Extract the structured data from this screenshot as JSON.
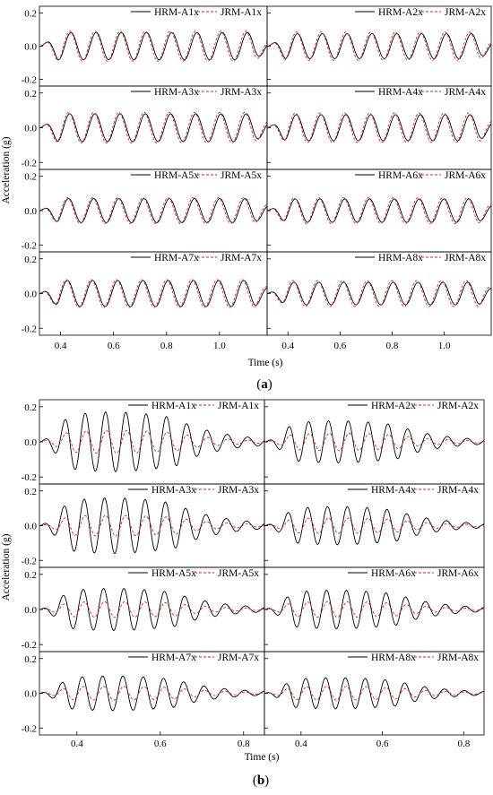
{
  "chart_data": [
    {
      "type": "line",
      "panel_label": "(a)",
      "panel_letter": "a",
      "xlabel": "Time (s)",
      "ylabel": "Acceleration (g)",
      "xlim": [
        0.32,
        1.18
      ],
      "ylim": [
        -0.24,
        0.24
      ],
      "xticks": [
        0.4,
        0.6,
        0.8,
        1.0
      ],
      "xtick_labels": [
        "0.4",
        "0.6",
        "0.8",
        "1.0"
      ],
      "yticks": [
        -0.2,
        0.0,
        0.2
      ],
      "ytick_labels": [
        "-0.2",
        "0.0",
        "0.2"
      ],
      "grid": false,
      "legend_position": "top-right",
      "line_colors": {
        "HRM": "#000000",
        "JRM": "#d62728"
      },
      "frequency_hz": 10.5,
      "subplots": [
        {
          "series": [
            {
              "name": "HRM-A1x",
              "style": "solid"
            },
            {
              "name": "JRM-A1x",
              "style": "dashed"
            }
          ],
          "hrm_peak": 0.082,
          "jrm_peak": 0.09
        },
        {
          "series": [
            {
              "name": "HRM-A2x",
              "style": "solid"
            },
            {
              "name": "JRM-A2x",
              "style": "dashed"
            }
          ],
          "hrm_peak": 0.075,
          "jrm_peak": 0.085
        },
        {
          "series": [
            {
              "name": "HRM-A3x",
              "style": "solid"
            },
            {
              "name": "JRM-A3x",
              "style": "dashed"
            }
          ],
          "hrm_peak": 0.08,
          "jrm_peak": 0.088
        },
        {
          "series": [
            {
              "name": "HRM-A4x",
              "style": "solid"
            },
            {
              "name": "JRM-A4x",
              "style": "dashed"
            }
          ],
          "hrm_peak": 0.075,
          "jrm_peak": 0.085
        },
        {
          "series": [
            {
              "name": "HRM-A5x",
              "style": "solid"
            },
            {
              "name": "JRM-A5x",
              "style": "dashed"
            }
          ],
          "hrm_peak": 0.07,
          "jrm_peak": 0.075
        },
        {
          "series": [
            {
              "name": "HRM-A6x",
              "style": "solid"
            },
            {
              "name": "JRM-A6x",
              "style": "dashed"
            }
          ],
          "hrm_peak": 0.068,
          "jrm_peak": 0.075
        },
        {
          "series": [
            {
              "name": "HRM-A7x",
              "style": "solid"
            },
            {
              "name": "JRM-A7x",
              "style": "dashed"
            }
          ],
          "hrm_peak": 0.075,
          "jrm_peak": 0.08
        },
        {
          "series": [
            {
              "name": "HRM-A8x",
              "style": "solid"
            },
            {
              "name": "JRM-A8x",
              "style": "dashed"
            }
          ],
          "hrm_peak": 0.065,
          "jrm_peak": 0.075
        }
      ]
    },
    {
      "type": "line",
      "panel_label": "(b)",
      "panel_letter": "b",
      "xlabel": "Time (s)",
      "ylabel": "Acceleration (g)",
      "xlim": [
        0.31,
        0.85
      ],
      "ylim": [
        -0.24,
        0.24
      ],
      "xticks": [
        0.4,
        0.6,
        0.8
      ],
      "xtick_labels": [
        "0.4",
        "0.6",
        "0.8"
      ],
      "yticks": [
        -0.2,
        0.0,
        0.2
      ],
      "ytick_labels": [
        "-0.2",
        "0.0",
        "0.2"
      ],
      "grid": false,
      "legend_position": "top-right",
      "line_colors": {
        "HRM": "#000000",
        "JRM": "#d62728"
      },
      "frequency_hz": 20.5,
      "subplots": [
        {
          "series": [
            {
              "name": "HRM-A1x",
              "style": "solid"
            },
            {
              "name": "JRM-A1x",
              "style": "dashed"
            }
          ],
          "hrm_peak": 0.17,
          "jrm_peak": 0.065
        },
        {
          "series": [
            {
              "name": "HRM-A2x",
              "style": "solid"
            },
            {
              "name": "JRM-A2x",
              "style": "dashed"
            }
          ],
          "hrm_peak": 0.12,
          "jrm_peak": 0.05
        },
        {
          "series": [
            {
              "name": "HRM-A3x",
              "style": "solid"
            },
            {
              "name": "JRM-A3x",
              "style": "dashed"
            }
          ],
          "hrm_peak": 0.16,
          "jrm_peak": 0.06
        },
        {
          "series": [
            {
              "name": "HRM-A4x",
              "style": "solid"
            },
            {
              "name": "JRM-A4x",
              "style": "dashed"
            }
          ],
          "hrm_peak": 0.11,
          "jrm_peak": 0.045
        },
        {
          "series": [
            {
              "name": "HRM-A5x",
              "style": "solid"
            },
            {
              "name": "JRM-A5x",
              "style": "dashed"
            }
          ],
          "hrm_peak": 0.12,
          "jrm_peak": 0.045
        },
        {
          "series": [
            {
              "name": "HRM-A6x",
              "style": "solid"
            },
            {
              "name": "JRM-A6x",
              "style": "dashed"
            }
          ],
          "hrm_peak": 0.11,
          "jrm_peak": 0.045
        },
        {
          "series": [
            {
              "name": "HRM-A7x",
              "style": "solid"
            },
            {
              "name": "JRM-A7x",
              "style": "dashed"
            }
          ],
          "hrm_peak": 0.1,
          "jrm_peak": 0.04
        },
        {
          "series": [
            {
              "name": "HRM-A8x",
              "style": "solid"
            },
            {
              "name": "JRM-A8x",
              "style": "dashed"
            }
          ],
          "hrm_peak": 0.09,
          "jrm_peak": 0.04
        }
      ]
    }
  ]
}
